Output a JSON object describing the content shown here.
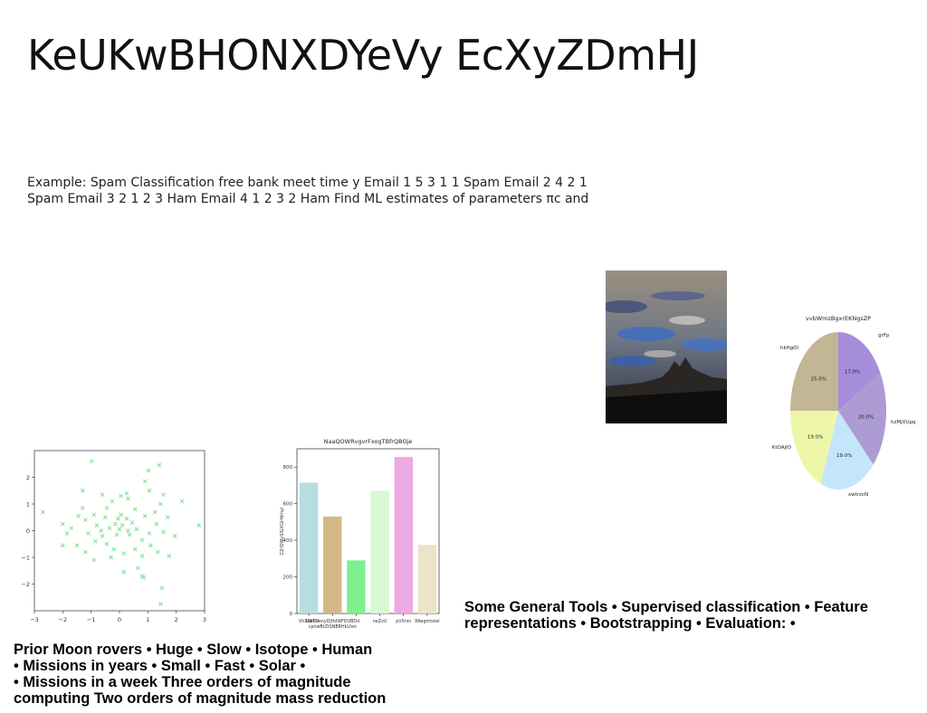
{
  "slide": {
    "title": "KeUKwBHONXDYeVy EcXyZDmHJ",
    "body": "Example: Spam Classification free bank meet time y Email 1 5 3 1 1 Spam Email 2 4 2 1 Spam Email 3 2 1 2 3 Ham Email 4 1 2 3 2 Ham Find ML estimates of parameters πc and",
    "tools_text": "Some General Tools • Supervised classification • Feature representations • Bootstrapping • Evaluation: •",
    "moon_text_lines": [
      "Prior Moon rovers • Huge • Slow • Isotope • Human",
      "• Missions in years • Small • Fast • Solar •",
      "• Missions in a week Three orders of magnitude",
      "computing Two orders of magnitude mass reduction"
    ]
  },
  "chart_data": [
    {
      "type": "scatter",
      "title": "",
      "xlabel": "",
      "ylabel": "",
      "xlim": [
        -3,
        3
      ],
      "ylim": [
        -3,
        3
      ],
      "x_ticks": [
        "−3",
        "−2",
        "−1",
        "0",
        "1",
        "2",
        "3"
      ],
      "y_ticks": [
        "−2",
        "−1",
        "0",
        "1",
        "2"
      ],
      "marker": "x",
      "color": "#7fe08a",
      "series": [
        {
          "points": [
            [
              -0.98,
              2.6
            ],
            [
              1.4,
              2.45
            ],
            [
              1.02,
              2.25
            ],
            [
              0.9,
              1.85
            ],
            [
              0.05,
              1.3
            ],
            [
              0.25,
              1.4
            ],
            [
              -0.6,
              1.35
            ],
            [
              -0.25,
              1.1
            ],
            [
              2.2,
              1.1
            ],
            [
              1.55,
              1.35
            ],
            [
              1.05,
              1.5
            ],
            [
              0.3,
              1.2
            ],
            [
              -1.3,
              1.5
            ],
            [
              -2.7,
              0.7
            ],
            [
              -1.7,
              0.1
            ],
            [
              -1.45,
              0.55
            ],
            [
              -1.2,
              0.4
            ],
            [
              -0.8,
              0.2
            ],
            [
              -0.5,
              0.5
            ],
            [
              -0.15,
              0.25
            ],
            [
              0.05,
              0.6
            ],
            [
              0.25,
              0.45
            ],
            [
              0.55,
              0.8
            ],
            [
              0.9,
              0.55
            ],
            [
              1.25,
              0.7
            ],
            [
              1.45,
              1.0
            ],
            [
              2.8,
              0.2
            ],
            [
              -2.0,
              0.25
            ],
            [
              -1.85,
              -0.1
            ],
            [
              -1.5,
              -0.55
            ],
            [
              -1.1,
              -0.1
            ],
            [
              -0.85,
              -0.4
            ],
            [
              -0.6,
              -0.2
            ],
            [
              -0.35,
              0.1
            ],
            [
              -0.1,
              -0.15
            ],
            [
              0.1,
              0.2
            ],
            [
              0.35,
              -0.15
            ],
            [
              0.6,
              0.05
            ],
            [
              0.8,
              -0.35
            ],
            [
              1.05,
              -0.1
            ],
            [
              1.3,
              0.25
            ],
            [
              1.55,
              -0.05
            ],
            [
              -2.0,
              -0.55
            ],
            [
              -1.2,
              -0.8
            ],
            [
              -0.9,
              -1.1
            ],
            [
              -0.45,
              -0.5
            ],
            [
              -0.2,
              -0.7
            ],
            [
              0.15,
              -0.85
            ],
            [
              0.55,
              -0.7
            ],
            [
              0.8,
              -0.95
            ],
            [
              1.1,
              -0.55
            ],
            [
              1.35,
              -0.8
            ],
            [
              1.75,
              -0.95
            ],
            [
              0.15,
              -1.55
            ],
            [
              0.8,
              -1.7
            ],
            [
              1.5,
              -2.15
            ],
            [
              1.45,
              -2.75
            ],
            [
              0.65,
              -1.4
            ],
            [
              -0.3,
              -1.0
            ],
            [
              -0.65,
              0.0
            ],
            [
              0.0,
              0.05
            ],
            [
              0.3,
              0.0
            ],
            [
              -0.05,
              0.45
            ],
            [
              0.45,
              0.3
            ],
            [
              -0.9,
              0.6
            ],
            [
              1.7,
              0.5
            ],
            [
              0.85,
              -1.75
            ],
            [
              1.95,
              -0.2
            ],
            [
              -1.3,
              0.85
            ],
            [
              -0.45,
              0.85
            ]
          ]
        }
      ]
    },
    {
      "type": "bar",
      "title": "NaaQOWRvgvrFxogTBfrQBOje",
      "xlabel": "",
      "ylabel": "CZrDWySlGXGlrNmyl",
      "ylim": [
        0,
        900
      ],
      "y_ticks": [
        "0",
        "200",
        "400",
        "600",
        "800"
      ],
      "categories": [
        "VhXdeFO",
        "NWDsenyDjHdWFDUBDd\ncpnwBtZtSNBRHkLfen",
        "HdWFDUBDd",
        "neZvU",
        "pVXnin",
        "RAegmtoiel"
      ],
      "category_labels_row1": [
        "VhXdeFO",
        "NWDsenyDjHdWFDUBDd",
        "",
        "neZvU",
        "pVXnin",
        "RAegmtoiel"
      ],
      "category_labels_row2": [
        "",
        "cpnwBtZtSNBRHkLfen",
        "",
        "",
        "",
        ""
      ],
      "values": [
        715,
        530,
        290,
        670,
        855,
        375
      ],
      "colors": [
        "#b7dde0",
        "#d4b886",
        "#7ff08f",
        "#d6f9d3",
        "#eca9e3",
        "#ece3c8"
      ]
    },
    {
      "type": "pie",
      "title": "vvbWmzBgxrEKNgsZP",
      "labels": [
        "grFp",
        "hzMjXUpq",
        "xwtrzcN",
        "KtOAjIO",
        "hkftgOl"
      ],
      "values": [
        17.0,
        20.0,
        19.0,
        19.0,
        25.0
      ],
      "value_labels": [
        "17.0%",
        "20.0%",
        "19.0%",
        "19.0%",
        "25.0%"
      ],
      "colors": [
        "#a58ddb",
        "#ad9bd4",
        "#c4e6fa",
        "#eef7a8",
        "#c2b694"
      ]
    }
  ]
}
